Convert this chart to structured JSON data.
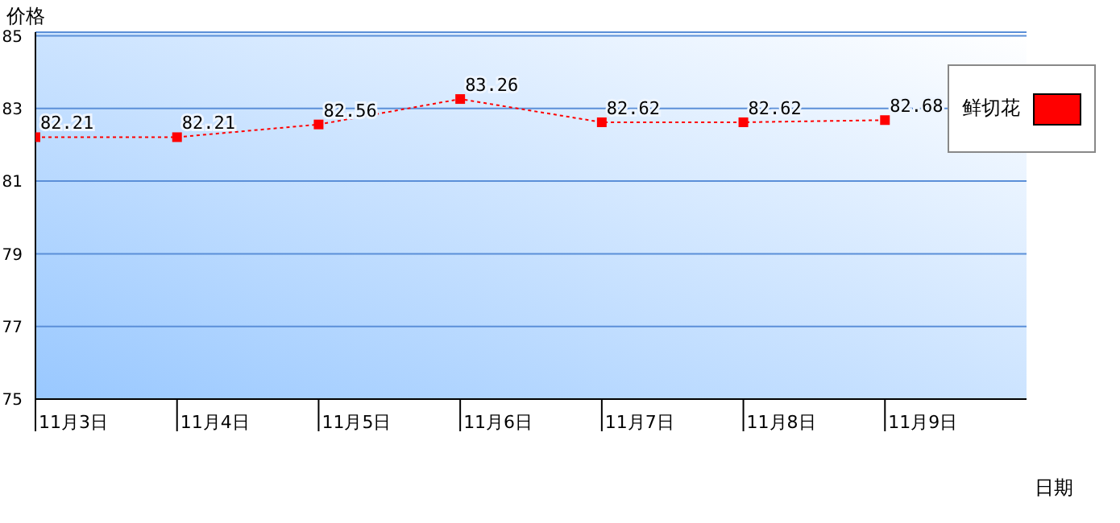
{
  "chart_data": {
    "type": "line",
    "xlabel": "日期",
    "ylabel": "价格",
    "categories": [
      "11月3日",
      "11月4日",
      "11月5日",
      "11月6日",
      "11月7日",
      "11月8日",
      "11月9日"
    ],
    "series": [
      {
        "name": "鲜切花",
        "color": "#ff0000",
        "values": [
          82.21,
          82.21,
          82.56,
          83.26,
          82.62,
          82.62,
          82.68
        ]
      }
    ],
    "ylim": [
      75,
      85.1
    ],
    "yticks": [
      75,
      77,
      79,
      81,
      83,
      85
    ],
    "grid": "y",
    "legend": "top right",
    "marker": "square",
    "line_style": "dotted",
    "data_labels": true
  }
}
